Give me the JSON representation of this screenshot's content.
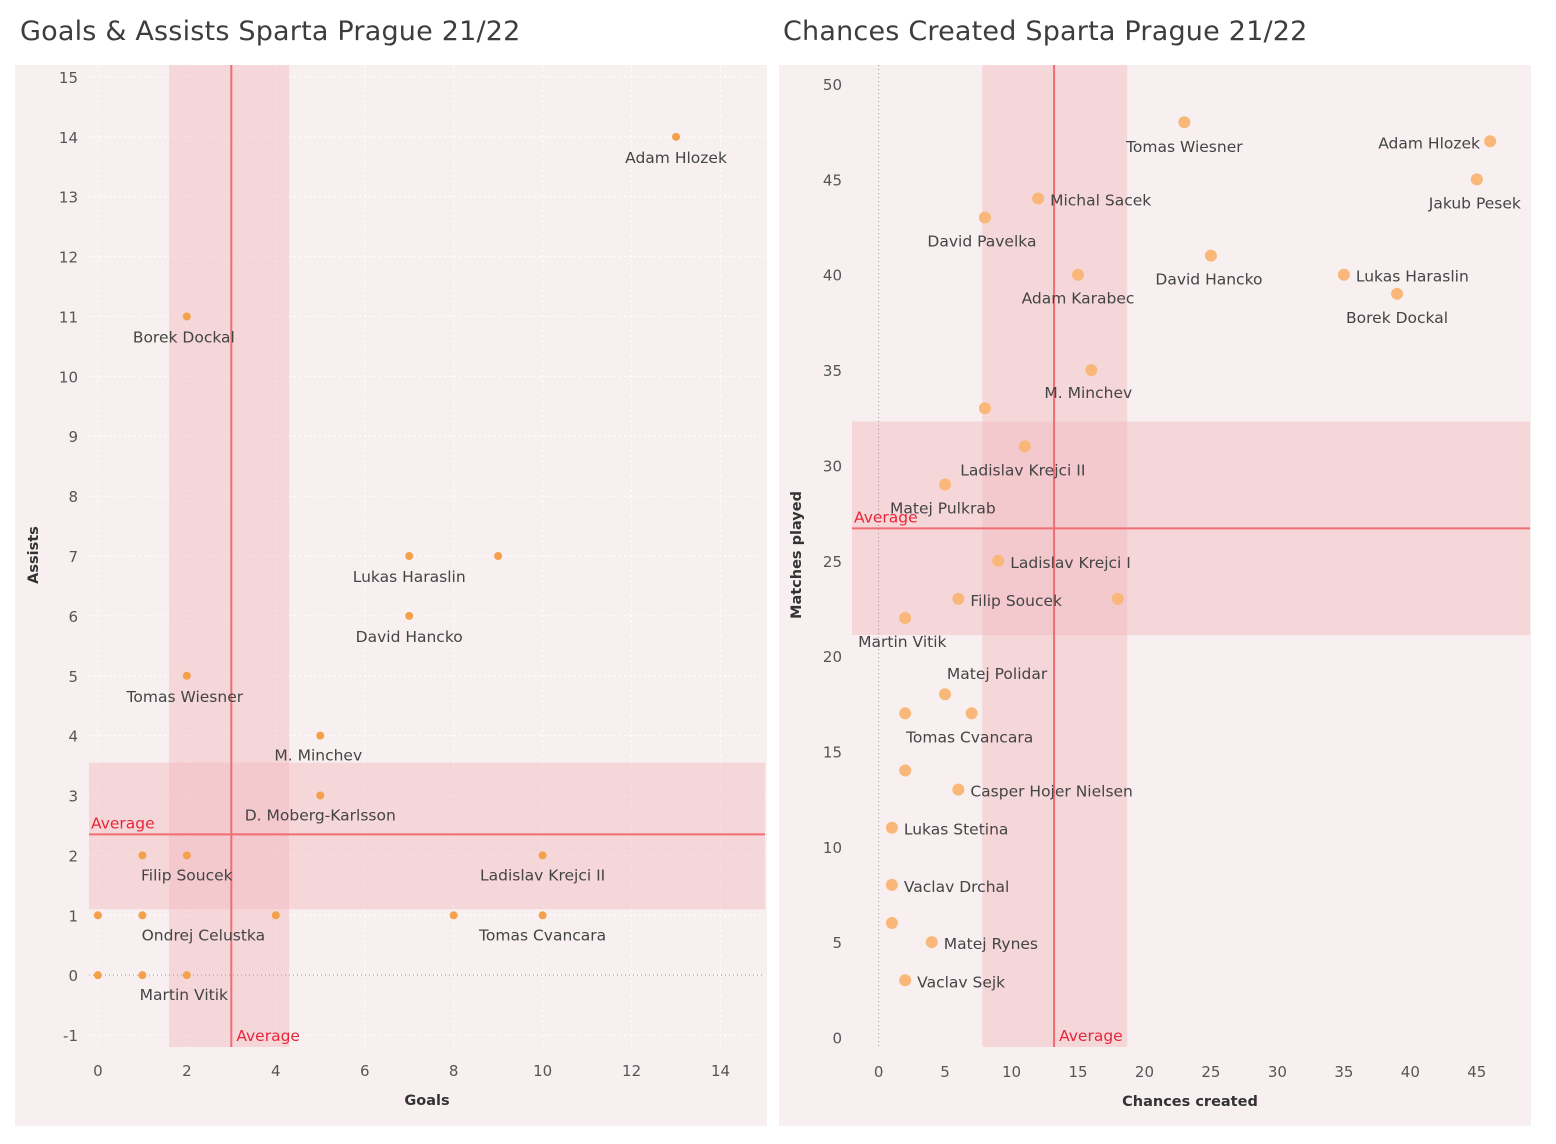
{
  "chart_data": [
    {
      "type": "scatter",
      "title": "Goals & Assists Sparta Prague 21/22",
      "xlabel": "Goals",
      "ylabel": "Assists",
      "xlim": [
        -0.2,
        15
      ],
      "ylim": [
        -1.2,
        15.2
      ],
      "x_ticks": [
        0,
        2,
        4,
        6,
        8,
        10,
        12,
        14
      ],
      "y_ticks": [
        -1,
        0,
        1,
        2,
        3,
        4,
        5,
        6,
        7,
        8,
        9,
        10,
        11,
        12,
        13,
        14,
        15
      ],
      "grid": true,
      "average": {
        "x": 3.0,
        "y": 2.35,
        "label": "Average",
        "x_band": [
          1.6,
          4.3
        ],
        "y_band": [
          1.1,
          3.55
        ]
      },
      "points": [
        {
          "x": 13,
          "y": 14,
          "label": "Adam Hlozek"
        },
        {
          "x": 2,
          "y": 11,
          "label": "Borek Dockal"
        },
        {
          "x": 7,
          "y": 7,
          "label": "Lukas Haraslin"
        },
        {
          "x": 9,
          "y": 7,
          "label": ""
        },
        {
          "x": 7,
          "y": 6,
          "label": "David Hancko"
        },
        {
          "x": 2,
          "y": 5,
          "label": "Tomas Wiesner"
        },
        {
          "x": 5,
          "y": 4,
          "label": "M. Minchev"
        },
        {
          "x": 5,
          "y": 3,
          "label": "D. Moberg-Karlsson"
        },
        {
          "x": 1,
          "y": 2,
          "label": ""
        },
        {
          "x": 2,
          "y": 2,
          "label": "Filip Soucek"
        },
        {
          "x": 10,
          "y": 2,
          "label": "Ladislav Krejci II"
        },
        {
          "x": 0,
          "y": 1,
          "label": ""
        },
        {
          "x": 1,
          "y": 1,
          "label": "Ondrej Celustka"
        },
        {
          "x": 4,
          "y": 1,
          "label": ""
        },
        {
          "x": 8,
          "y": 1,
          "label": ""
        },
        {
          "x": 10,
          "y": 1,
          "label": "Tomas Cvancara"
        },
        {
          "x": 0,
          "y": 0,
          "label": ""
        },
        {
          "x": 1,
          "y": 0,
          "label": ""
        },
        {
          "x": 2,
          "y": 0,
          "label": "Martin Vitik"
        }
      ]
    },
    {
      "type": "scatter",
      "title": "Chances Created Sparta Prague 21/22",
      "xlabel": "Chances created",
      "ylabel": "Matches played",
      "xlim": [
        -2,
        49
      ],
      "ylim": [
        -0.5,
        51
      ],
      "x_ticks": [
        0,
        5,
        10,
        15,
        20,
        25,
        30,
        35,
        40,
        45
      ],
      "y_ticks": [
        0,
        5,
        10,
        15,
        20,
        25,
        30,
        35,
        40,
        45,
        50
      ],
      "grid": false,
      "average": {
        "x": 13.2,
        "y": 26.7,
        "label": "Average",
        "x_band": [
          7.8,
          18.7
        ],
        "y_band": [
          21.1,
          32.3
        ]
      },
      "points": [
        {
          "x": 23,
          "y": 48,
          "label": "Tomas Wiesner"
        },
        {
          "x": 46,
          "y": 47,
          "label": "Adam Hlozek"
        },
        {
          "x": 45,
          "y": 45,
          "label": "Jakub Pesek"
        },
        {
          "x": 12,
          "y": 44,
          "label": "Michal Sacek"
        },
        {
          "x": 8,
          "y": 43,
          "label": "David Pavelka"
        },
        {
          "x": 25,
          "y": 41,
          "label": "David Hancko"
        },
        {
          "x": 15,
          "y": 40,
          "label": "Adam Karabec"
        },
        {
          "x": 35,
          "y": 40,
          "label": "Lukas Haraslin"
        },
        {
          "x": 39,
          "y": 39,
          "label": "Borek Dockal"
        },
        {
          "x": 16,
          "y": 35,
          "label": "M. Minchev"
        },
        {
          "x": 8,
          "y": 33,
          "label": ""
        },
        {
          "x": 11,
          "y": 31,
          "label": "Ladislav Krejci II"
        },
        {
          "x": 5,
          "y": 29,
          "label": "Matej Pulkrab"
        },
        {
          "x": 9,
          "y": 25,
          "label": "Ladislav Krejci I"
        },
        {
          "x": 6,
          "y": 23,
          "label": "Filip Soucek"
        },
        {
          "x": 18,
          "y": 23,
          "label": ""
        },
        {
          "x": 2,
          "y": 22,
          "label": "Martin Vitik"
        },
        {
          "x": 5,
          "y": 18,
          "label": "Matej Polidar"
        },
        {
          "x": 2,
          "y": 17,
          "label": ""
        },
        {
          "x": 7,
          "y": 17,
          "label": "Tomas Cvancara"
        },
        {
          "x": 2,
          "y": 14,
          "label": ""
        },
        {
          "x": 6,
          "y": 13,
          "label": "Casper Hojer Nielsen"
        },
        {
          "x": 1,
          "y": 11,
          "label": "Lukas Stetina"
        },
        {
          "x": 1,
          "y": 8,
          "label": "Vaclav Drchal"
        },
        {
          "x": 1,
          "y": 6,
          "label": ""
        },
        {
          "x": 4,
          "y": 5,
          "label": "Matej Rynes"
        },
        {
          "x": 2,
          "y": 3,
          "label": "Vaclav Sejk"
        }
      ]
    }
  ],
  "colors": {
    "point": "#f5a04a",
    "point_right": "#f9b779",
    "average_line": "#f06d73",
    "average_label": "#e8263a",
    "band": "#f2b8bf",
    "background": "#f8f0f0",
    "text": "#444444"
  }
}
